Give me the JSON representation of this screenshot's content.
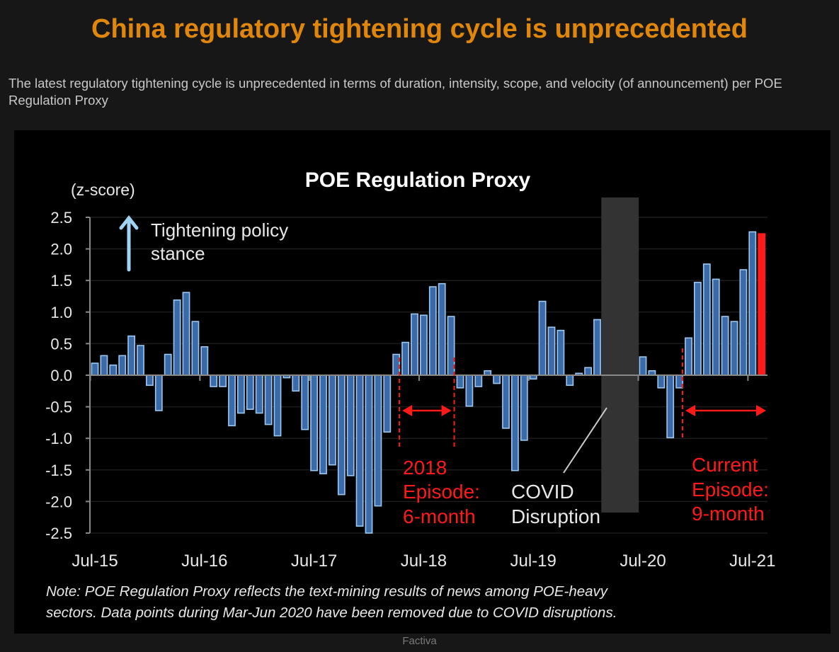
{
  "header": {
    "title": "China regulatory tightening cycle is unprecedented",
    "subtitle": "The latest regulatory tightening cycle is unprecedented in terms of duration, intensity, scope, and velocity (of announcement) per POE Regulation Proxy"
  },
  "source": "Factiva",
  "colors": {
    "title": "#e0860a",
    "bar_fill": "#3a6aa8",
    "bar_edge": "#9cc8f0",
    "latest_bar": "#ff1a1a",
    "annotation_red": "#ff1a1a",
    "covid_shade": "#333333"
  },
  "chart_data": {
    "type": "bar",
    "title": "POE Regulation Proxy",
    "ylabel": "(z-score)",
    "ylim": [
      -2.5,
      2.5
    ],
    "yticks": [
      "2.5",
      "2.0",
      "1.5",
      "1.0",
      "0.5",
      "0.0",
      "-0.5",
      "-1.0",
      "-1.5",
      "-2.0",
      "-2.5"
    ],
    "xtick_labels": [
      "Jul-15",
      "Jul-16",
      "Jul-17",
      "Jul-18",
      "Jul-19",
      "Jul-20",
      "Jul-21"
    ],
    "grid": true,
    "categories": [
      "Jul-15",
      "Aug-15",
      "Sep-15",
      "Oct-15",
      "Nov-15",
      "Dec-15",
      "Jan-16",
      "Feb-16",
      "Mar-16",
      "Apr-16",
      "May-16",
      "Jun-16",
      "Jul-16",
      "Aug-16",
      "Sep-16",
      "Oct-16",
      "Nov-16",
      "Dec-16",
      "Jan-17",
      "Feb-17",
      "Mar-17",
      "Apr-17",
      "May-17",
      "Jun-17",
      "Jul-17",
      "Aug-17",
      "Sep-17",
      "Oct-17",
      "Nov-17",
      "Dec-17",
      "Jan-18",
      "Feb-18",
      "Mar-18",
      "Apr-18",
      "May-18",
      "Jun-18",
      "Jul-18",
      "Aug-18",
      "Sep-18",
      "Oct-18",
      "Nov-18",
      "Dec-18",
      "Jan-19",
      "Feb-19",
      "Mar-19",
      "Apr-19",
      "May-19",
      "Jun-19",
      "Jul-19",
      "Aug-19",
      "Sep-19",
      "Oct-19",
      "Nov-19",
      "Dec-19",
      "Jan-20",
      "Feb-20",
      "Mar-20",
      "Apr-20",
      "May-20",
      "Jun-20",
      "Jul-20",
      "Aug-20",
      "Sep-20",
      "Oct-20",
      "Nov-20",
      "Dec-20",
      "Jan-21",
      "Feb-21",
      "Mar-21",
      "Apr-21",
      "May-21",
      "Jun-21",
      "Jul-21",
      "Aug-21"
    ],
    "values": [
      0.19,
      0.31,
      0.16,
      0.31,
      0.62,
      0.47,
      -0.16,
      -0.56,
      0.33,
      1.19,
      1.31,
      0.85,
      0.45,
      -0.18,
      -0.18,
      -0.8,
      -0.6,
      -0.54,
      -0.6,
      -0.78,
      -0.96,
      -0.04,
      -0.25,
      -0.86,
      -1.51,
      -1.56,
      -1.42,
      -1.89,
      -1.59,
      -2.39,
      -2.5,
      -2.07,
      -0.9,
      0.33,
      0.52,
      0.97,
      0.95,
      1.4,
      1.45,
      0.93,
      -0.2,
      -0.49,
      -0.18,
      0.07,
      -0.13,
      -0.84,
      -1.51,
      -1.03,
      -0.06,
      1.17,
      0.76,
      0.71,
      -0.16,
      0.03,
      0.12,
      0.88,
      null,
      null,
      null,
      null,
      0.29,
      0.07,
      -0.2,
      -0.99,
      -0.2,
      0.59,
      1.47,
      1.76,
      1.52,
      0.93,
      0.85,
      1.67,
      2.27,
      2.24
    ],
    "highlighted_category": "Aug-21",
    "shaded_period": {
      "from": "Mar-20",
      "to": "Jun-20"
    },
    "episodes": [
      {
        "from": "May-18",
        "to": "Nov-18"
      },
      {
        "from": "Dec-20",
        "to": "Aug-21"
      }
    ],
    "annotations": {
      "tightening": [
        "Tightening policy",
        "stance"
      ],
      "episode_2018": [
        "2018",
        "Episode:",
        "6-month"
      ],
      "covid": [
        "COVID",
        "Disruption"
      ],
      "current": [
        "Current",
        "Episode:",
        "9-month"
      ]
    },
    "note": [
      "Note: POE Regulation Proxy reflects the text-mining results of news among POE-heavy",
      "sectors. Data points during Mar-Jun 2020 have been removed due to COVID disruptions."
    ]
  }
}
